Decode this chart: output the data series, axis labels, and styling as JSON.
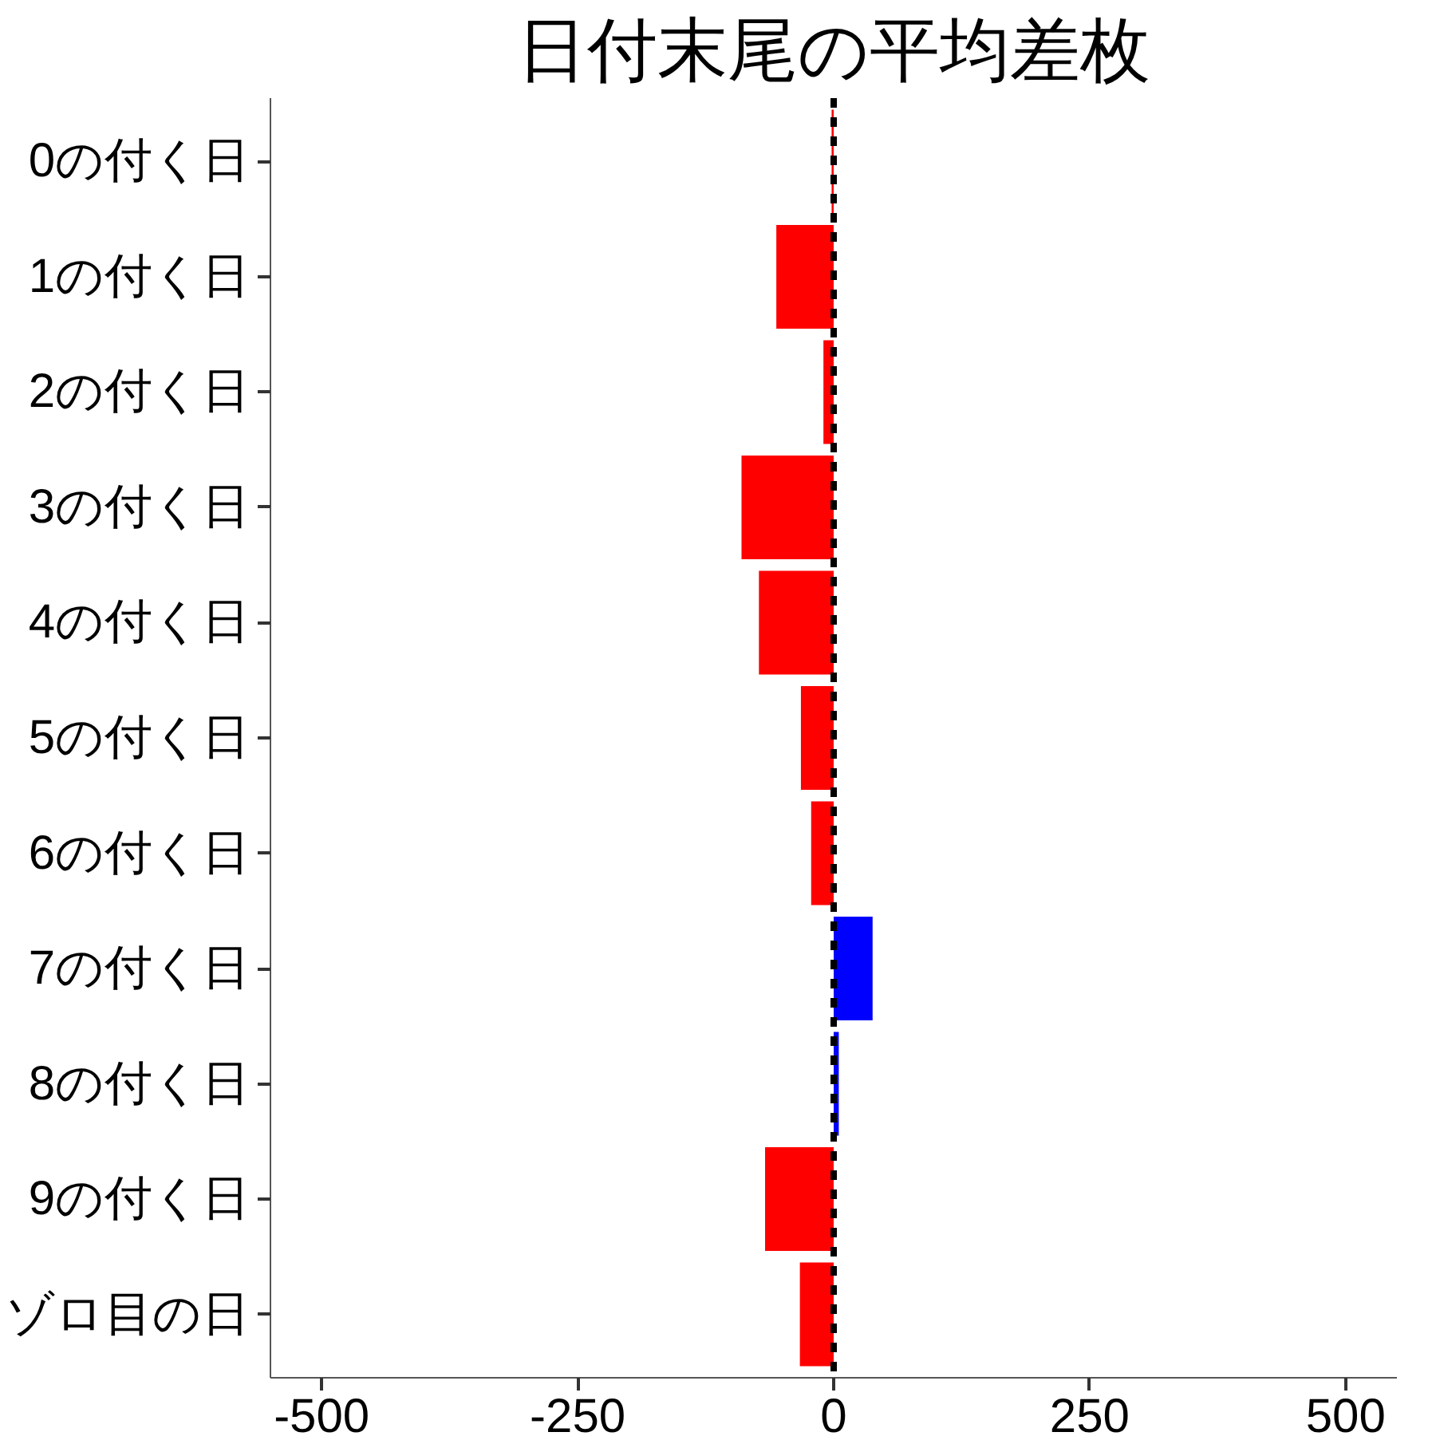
{
  "chart_data": {
    "type": "bar",
    "orientation": "horizontal",
    "title": "日付末尾の平均差枚",
    "categories": [
      "0の付く日",
      "1の付く日",
      "2の付く日",
      "3の付く日",
      "4の付く日",
      "5の付く日",
      "6の付く日",
      "7の付く日",
      "8の付く日",
      "9の付く日",
      "ゾロ目の日"
    ],
    "values": [
      -2,
      -56,
      -10,
      -90,
      -73,
      -32,
      -22,
      38,
      5,
      -67,
      -33
    ],
    "colors": [
      "#ff0000",
      "#ff0000",
      "#ff0000",
      "#ff0000",
      "#ff0000",
      "#ff0000",
      "#ff0000",
      "#0000ff",
      "#0000ff",
      "#ff0000",
      "#ff0000"
    ],
    "xlim": [
      -550,
      550
    ],
    "xticks": [
      -500,
      -250,
      0,
      250,
      500
    ],
    "ref_lines": [
      {
        "axis": "x",
        "value": 0,
        "color": "#000000",
        "line_style": "dashed"
      }
    ],
    "grid": false
  }
}
